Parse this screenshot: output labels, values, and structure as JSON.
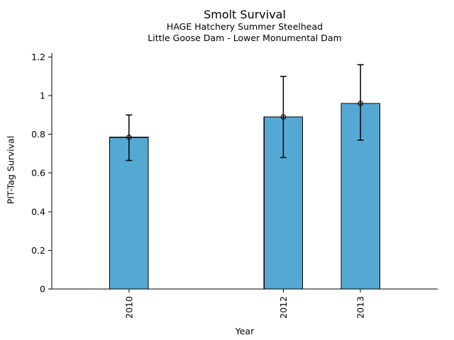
{
  "chart_data": {
    "type": "bar",
    "title": "Smolt Survival",
    "subtitle1": "HAGE Hatchery Summer Steelhead",
    "subtitle2": "Little Goose Dam - Lower Monumental Dam",
    "xlabel": "Year",
    "ylabel": "PIT-Tag Survival",
    "categories": [
      "2010",
      "2012",
      "2013"
    ],
    "x": [
      2010,
      2012,
      2013
    ],
    "values": [
      0.785,
      0.89,
      0.96
    ],
    "error_low": [
      0.665,
      0.68,
      0.77
    ],
    "error_high": [
      0.9,
      1.1,
      1.16
    ],
    "xlim": [
      2009,
      2014
    ],
    "ylim": [
      0,
      1.22
    ],
    "yticks": [
      0,
      0.2,
      0.4,
      0.6,
      0.8,
      1,
      1.2
    ],
    "ytick_labels": [
      "0",
      "0.2",
      "0.4",
      "0.6",
      "0.8",
      "1",
      "1.2"
    ],
    "bar_width_years": 0.5,
    "marker": "open-circle",
    "grid": false,
    "colors": {
      "bar_fill": "#56a8d4",
      "bar_edge": "#000000",
      "error": "#000000",
      "axis": "#000000",
      "text": "#000000",
      "background": "#ffffff"
    }
  }
}
